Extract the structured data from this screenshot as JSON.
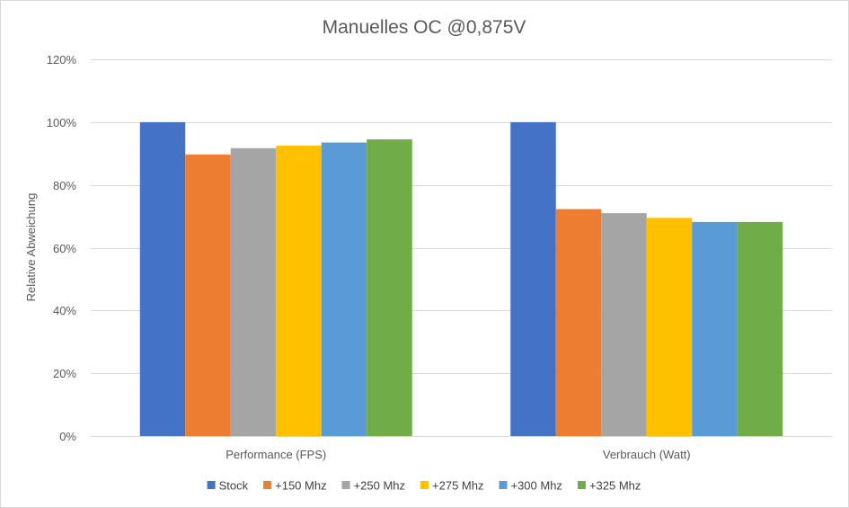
{
  "chart_data": {
    "type": "bar",
    "title": "Manuelles OC @0,875V",
    "xlabel": "",
    "ylabel": "Relative Abweichung",
    "ylim": [
      0,
      1.2
    ],
    "yticks": [
      0,
      0.2,
      0.4,
      0.6,
      0.8,
      1.0,
      1.2
    ],
    "ytick_labels": [
      "0%",
      "20%",
      "40%",
      "60%",
      "80%",
      "100%",
      "120%"
    ],
    "categories": [
      "Performance (FPS)",
      "Verbrauch (Watt)"
    ],
    "series": [
      {
        "name": "Stock",
        "color": "#4472C4",
        "values": [
          1.0,
          1.0
        ]
      },
      {
        "name": "+150 Mhz",
        "color": "#ED7D31",
        "values": [
          0.897,
          0.723
        ]
      },
      {
        "name": "+250 Mhz",
        "color": "#A5A5A5",
        "values": [
          0.917,
          0.71
        ]
      },
      {
        "name": "+275 Mhz",
        "color": "#FFC000",
        "values": [
          0.925,
          0.695
        ]
      },
      {
        "name": "+300 Mhz",
        "color": "#5B9BD5",
        "values": [
          0.935,
          0.682
        ]
      },
      {
        "name": "+325 Mhz",
        "color": "#70AD47",
        "values": [
          0.945,
          0.682
        ]
      }
    ],
    "grid": true,
    "legend": "bottom"
  }
}
